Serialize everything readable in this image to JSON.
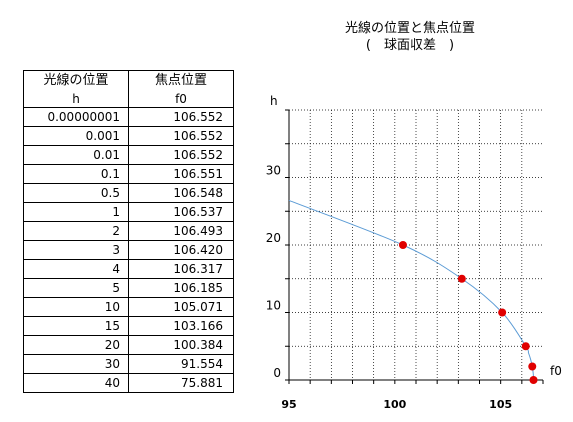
{
  "table": {
    "headers": [
      "光線の位置",
      "焦点位置"
    ],
    "subheaders": [
      "h",
      "f0"
    ],
    "rows": [
      [
        "0.00000001",
        "106.552"
      ],
      [
        "0.001",
        "106.552"
      ],
      [
        "0.01",
        "106.552"
      ],
      [
        "0.1",
        "106.551"
      ],
      [
        "0.5",
        "106.548"
      ],
      [
        "1",
        "106.537"
      ],
      [
        "2",
        "106.493"
      ],
      [
        "3",
        "106.420"
      ],
      [
        "4",
        "106.317"
      ],
      [
        "5",
        "106.185"
      ],
      [
        "10",
        "105.071"
      ],
      [
        "15",
        "103.166"
      ],
      [
        "20",
        "100.384"
      ],
      [
        "30",
        "91.554"
      ],
      [
        "40",
        "75.881"
      ]
    ]
  },
  "chart_data": {
    "type": "scatter",
    "title": "光線の位置と焦点位置",
    "subtitle": "(　球面収差　)",
    "xlabel": "f0",
    "ylabel": "h",
    "xlim": [
      95,
      107
    ],
    "ylim": [
      0,
      40
    ],
    "x_ticks": [
      "95",
      "100",
      "105"
    ],
    "y_ticks": [
      "0",
      "10",
      "20",
      "30"
    ],
    "grid": true,
    "points": [
      {
        "x": 106.552,
        "y": 0
      },
      {
        "x": 106.493,
        "y": 2
      },
      {
        "x": 106.185,
        "y": 5
      },
      {
        "x": 105.071,
        "y": 10
      },
      {
        "x": 103.166,
        "y": 15
      },
      {
        "x": 100.384,
        "y": 20
      }
    ],
    "curve": [
      {
        "x": 106.552,
        "y": 0
      },
      {
        "x": 106.548,
        "y": 0.5
      },
      {
        "x": 106.537,
        "y": 1
      },
      {
        "x": 106.493,
        "y": 2
      },
      {
        "x": 106.42,
        "y": 3
      },
      {
        "x": 106.317,
        "y": 4
      },
      {
        "x": 106.185,
        "y": 5
      },
      {
        "x": 105.071,
        "y": 10
      },
      {
        "x": 103.166,
        "y": 15
      },
      {
        "x": 100.384,
        "y": 20
      },
      {
        "x": 95.0,
        "y": 26.6
      }
    ],
    "point_color": "#e00000",
    "curve_color": "#5b9bd5"
  }
}
